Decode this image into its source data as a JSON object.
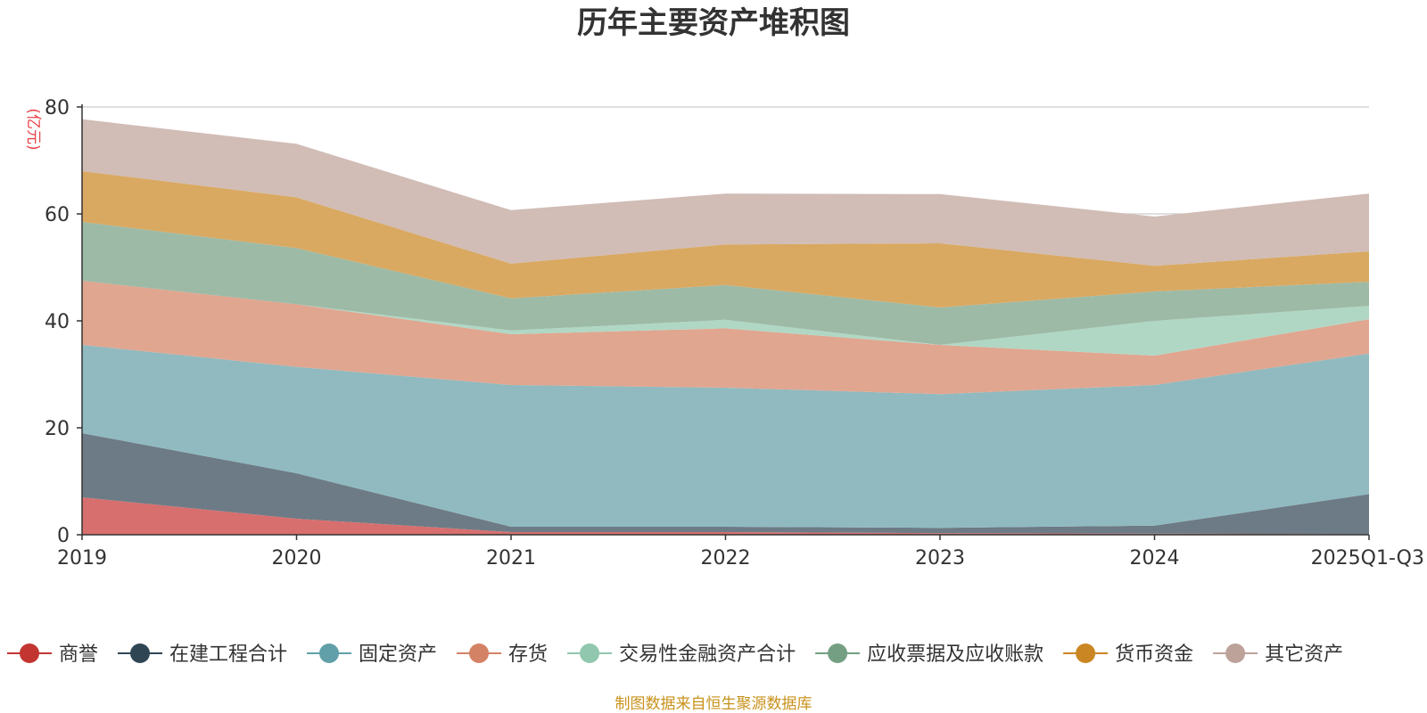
{
  "chart_data": {
    "type": "area",
    "stacked": true,
    "title": "历年主要资产堆积图",
    "ylabel": "(亿元)",
    "ylim": [
      0,
      80
    ],
    "yticks": [
      0,
      20,
      40,
      60,
      80
    ],
    "categories": [
      "2019",
      "2020",
      "2021",
      "2022",
      "2023",
      "2024",
      "2025Q1-Q3"
    ],
    "series": [
      {
        "name": "商誉",
        "color": "#c23531",
        "fill": "#d76f6e",
        "values": [
          7.0,
          3.0,
          0.5,
          0.5,
          0.3,
          0.2,
          0.1
        ]
      },
      {
        "name": "在建工程合计",
        "color": "#2f4554",
        "fill": "#6d7b86",
        "values": [
          12.0,
          8.5,
          1.0,
          1.0,
          1.0,
          1.5,
          7.5
        ]
      },
      {
        "name": "固定资产",
        "color": "#61a0a8",
        "fill": "#90bac0",
        "values": [
          16.5,
          19.9,
          26.5,
          26.0,
          25.0,
          26.3,
          26.3
        ]
      },
      {
        "name": "存货",
        "color": "#d48265",
        "fill": "#e0a690",
        "values": [
          12.0,
          11.7,
          9.5,
          11.1,
          9.2,
          5.5,
          6.4
        ]
      },
      {
        "name": "交易性金融资产合计",
        "color": "#91c7ae",
        "fill": "#b0d7c4",
        "values": [
          0.0,
          0.0,
          0.7,
          1.6,
          0.0,
          6.5,
          2.5
        ]
      },
      {
        "name": "应收票据及应收账款",
        "color": "#749f83",
        "fill": "#9dbaa6",
        "values": [
          11.0,
          10.5,
          6.0,
          6.5,
          7.0,
          5.5,
          4.5
        ]
      },
      {
        "name": "货币资金",
        "color": "#ca8622",
        "fill": "#d9a962",
        "values": [
          9.5,
          9.5,
          6.5,
          7.6,
          12.0,
          4.8,
          5.7
        ]
      },
      {
        "name": "其它资产",
        "color": "#bda29a",
        "fill": "#d1bcb6",
        "values": [
          9.7,
          10.0,
          10.0,
          9.5,
          9.2,
          9.2,
          10.8
        ]
      }
    ]
  },
  "footer": {
    "source": "制图数据来自恒生聚源数据库"
  }
}
